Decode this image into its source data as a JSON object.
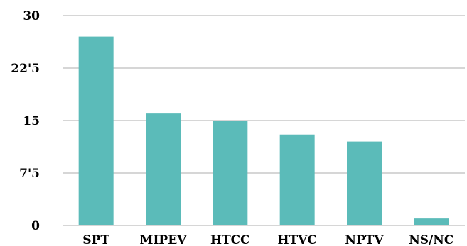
{
  "chart_data": {
    "type": "bar",
    "categories": [
      "SPT",
      "MIPEV",
      "HTCC",
      "HTVC",
      "NPTV",
      "NS/NC"
    ],
    "values": [
      27,
      16,
      15,
      13,
      12,
      1
    ],
    "ylim": [
      0,
      30
    ],
    "yticks": [
      {
        "value": 0,
        "label": "0"
      },
      {
        "value": 7.5,
        "label": "7'5"
      },
      {
        "value": 15,
        "label": "15"
      },
      {
        "value": 22.5,
        "label": "22'5"
      },
      {
        "value": 30,
        "label": "30"
      }
    ],
    "grid": true,
    "legend": "none",
    "colors": {
      "bar": "#5bbbb9",
      "grid": "#c8c8c8",
      "text": "#000000"
    }
  }
}
